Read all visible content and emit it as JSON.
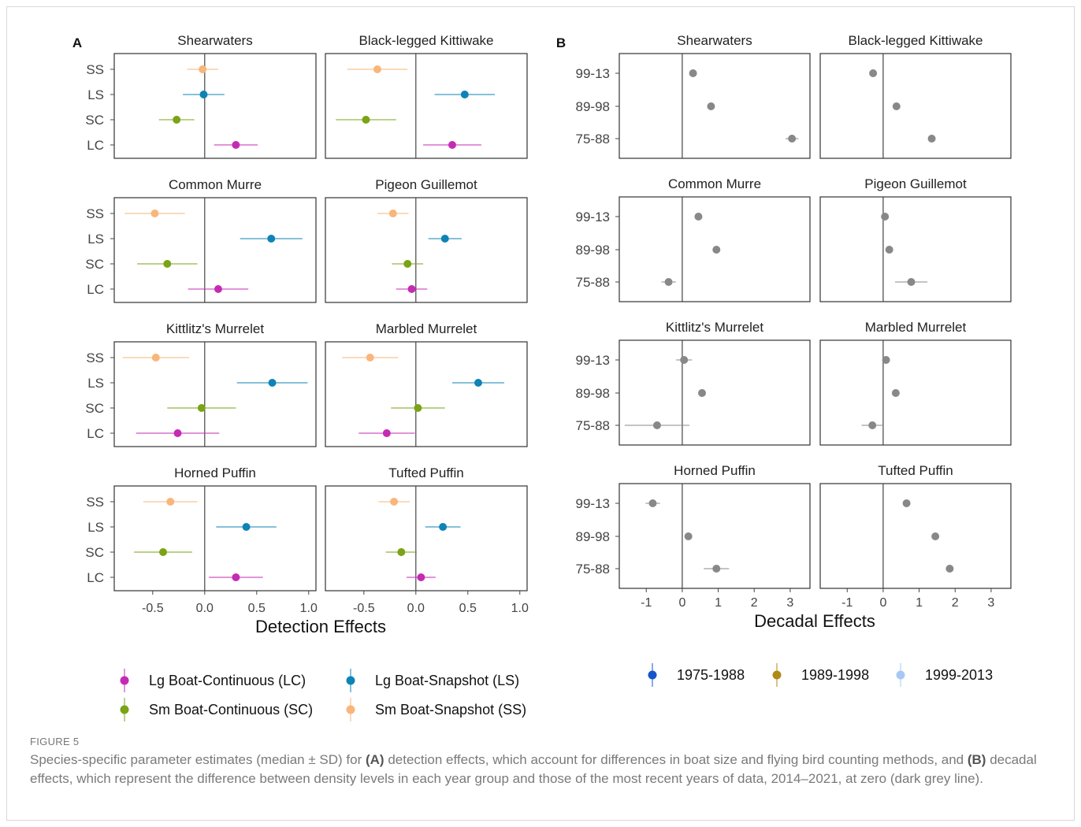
{
  "caption": {
    "label": "FIGURE 5",
    "pre": "Species-specific parameter estimates (median ± SD) for ",
    "a_label": "(A)",
    "mid": " detection effects, which account for differences in boat size and flying bird counting methods, and ",
    "b_label": "(B)",
    "post": " decadal effects, which represent the difference between density levels in each year group and those of the most recent years of data, 2014–2021, at zero (dark grey line)."
  },
  "colors": {
    "LC": "#c42bb4",
    "SC": "#7aa316",
    "LS": "#0e83b5",
    "SS": "#f9b57a",
    "1975-1988": "#1655c9",
    "1989-1998": "#b08a15",
    "1999-2013": "#a7c8f5",
    "zero_line": "#444444",
    "panel_border": "#333333"
  },
  "chart_data": [
    {
      "panel_label": "A",
      "type": "scatter",
      "subtype": "point-range (median ± SD)",
      "xlabel": "Detection Effects",
      "xlim": [
        -0.87,
        1.07
      ],
      "xticks": [
        -0.5,
        0.0,
        0.5,
        1.0
      ],
      "xtick_labels": [
        "-0.5",
        "0.0",
        "0.5",
        "1.0"
      ],
      "categories": [
        "SS",
        "LS",
        "SC",
        "LC"
      ],
      "legend": [
        {
          "key": "LC",
          "label": "Lg Boat-Continuous (LC)"
        },
        {
          "key": "LS",
          "label": "Lg Boat-Snapshot (LS)"
        },
        {
          "key": "SC",
          "label": "Sm Boat-Continuous (SC)"
        },
        {
          "key": "SS",
          "label": "Sm Boat-Snapshot (SS)"
        }
      ],
      "facets": [
        {
          "title": "Shearwaters",
          "points": {
            "SS": [
              -0.02,
              0.15
            ],
            "LS": [
              -0.01,
              0.2
            ],
            "SC": [
              -0.27,
              0.17
            ],
            "LC": [
              0.3,
              0.21
            ]
          }
        },
        {
          "title": "Black-legged Kittiwake",
          "points": {
            "SS": [
              -0.37,
              0.29
            ],
            "LS": [
              0.47,
              0.29
            ],
            "SC": [
              -0.48,
              0.29
            ],
            "LC": [
              0.35,
              0.28
            ]
          }
        },
        {
          "title": "Common Murre",
          "points": {
            "SS": [
              -0.48,
              0.29
            ],
            "LS": [
              0.64,
              0.3
            ],
            "SC": [
              -0.36,
              0.29
            ],
            "LC": [
              0.13,
              0.29
            ]
          }
        },
        {
          "title": "Pigeon Guillemot",
          "points": {
            "SS": [
              -0.22,
              0.15
            ],
            "LS": [
              0.28,
              0.16
            ],
            "SC": [
              -0.08,
              0.15
            ],
            "LC": [
              -0.04,
              0.15
            ]
          }
        },
        {
          "title": "Kittlitz's Murrelet",
          "points": {
            "SS": [
              -0.47,
              0.32
            ],
            "LS": [
              0.65,
              0.34
            ],
            "SC": [
              -0.03,
              0.33
            ],
            "LC": [
              -0.26,
              0.4
            ]
          }
        },
        {
          "title": "Marbled Murrelet",
          "points": {
            "SS": [
              -0.44,
              0.27
            ],
            "LS": [
              0.6,
              0.25
            ],
            "SC": [
              0.02,
              0.26
            ],
            "LC": [
              -0.28,
              0.27
            ]
          }
        },
        {
          "title": "Horned Puffin",
          "points": {
            "SS": [
              -0.33,
              0.26
            ],
            "LS": [
              0.4,
              0.29
            ],
            "SC": [
              -0.4,
              0.28
            ],
            "LC": [
              0.3,
              0.26
            ]
          }
        },
        {
          "title": "Tufted Puffin",
          "points": {
            "SS": [
              -0.21,
              0.15
            ],
            "LS": [
              0.26,
              0.17
            ],
            "SC": [
              -0.14,
              0.15
            ],
            "LC": [
              0.05,
              0.14
            ]
          }
        }
      ]
    },
    {
      "panel_label": "B",
      "type": "scatter",
      "subtype": "point-range (median ± SD)",
      "xlabel": "Decadal Effects",
      "xlim": [
        -1.75,
        3.55
      ],
      "xticks": [
        -1,
        0,
        1,
        2,
        3
      ],
      "xtick_labels": [
        "-1",
        "0",
        "1",
        "2",
        "3"
      ],
      "categories": [
        "99-13",
        "89-98",
        "75-88"
      ],
      "legend": [
        {
          "key": "1975-1988",
          "label": "1975-1988"
        },
        {
          "key": "1989-1998",
          "label": "1989-1998"
        },
        {
          "key": "1999-2013",
          "label": "1999-2013"
        }
      ],
      "facets": [
        {
          "title": "Shearwaters",
          "points": {
            "99-13": [
              0.3,
              0.08
            ],
            "89-98": [
              0.8,
              0.06
            ],
            "75-88": [
              3.05,
              0.18
            ]
          }
        },
        {
          "title": "Black-legged Kittiwake",
          "points": {
            "99-13": [
              -0.28,
              0.08
            ],
            "89-98": [
              0.37,
              0.07
            ],
            "75-88": [
              1.35,
              0.1
            ]
          }
        },
        {
          "title": "Common Murre",
          "points": {
            "99-13": [
              0.45,
              0.07
            ],
            "89-98": [
              0.95,
              0.07
            ],
            "75-88": [
              -0.38,
              0.2
            ]
          }
        },
        {
          "title": "Pigeon Guillemot",
          "points": {
            "99-13": [
              0.05,
              0.06
            ],
            "89-98": [
              0.17,
              0.06
            ],
            "75-88": [
              0.78,
              0.45
            ]
          }
        },
        {
          "title": "Kittlitz's Murrelet",
          "points": {
            "99-13": [
              0.05,
              0.22
            ],
            "89-98": [
              0.55,
              0.08
            ],
            "75-88": [
              -0.7,
              0.9
            ]
          }
        },
        {
          "title": "Marbled Murrelet",
          "points": {
            "99-13": [
              0.08,
              0.06
            ],
            "89-98": [
              0.35,
              0.06
            ],
            "75-88": [
              -0.3,
              0.3
            ]
          }
        },
        {
          "title": "Horned Puffin",
          "points": {
            "99-13": [
              -0.82,
              0.2
            ],
            "89-98": [
              0.17,
              0.05
            ],
            "75-88": [
              0.95,
              0.35
            ]
          }
        },
        {
          "title": "Tufted Puffin",
          "points": {
            "99-13": [
              0.65,
              0.1
            ],
            "89-98": [
              1.45,
              0.05
            ],
            "75-88": [
              1.85,
              0.08
            ]
          }
        }
      ]
    }
  ]
}
